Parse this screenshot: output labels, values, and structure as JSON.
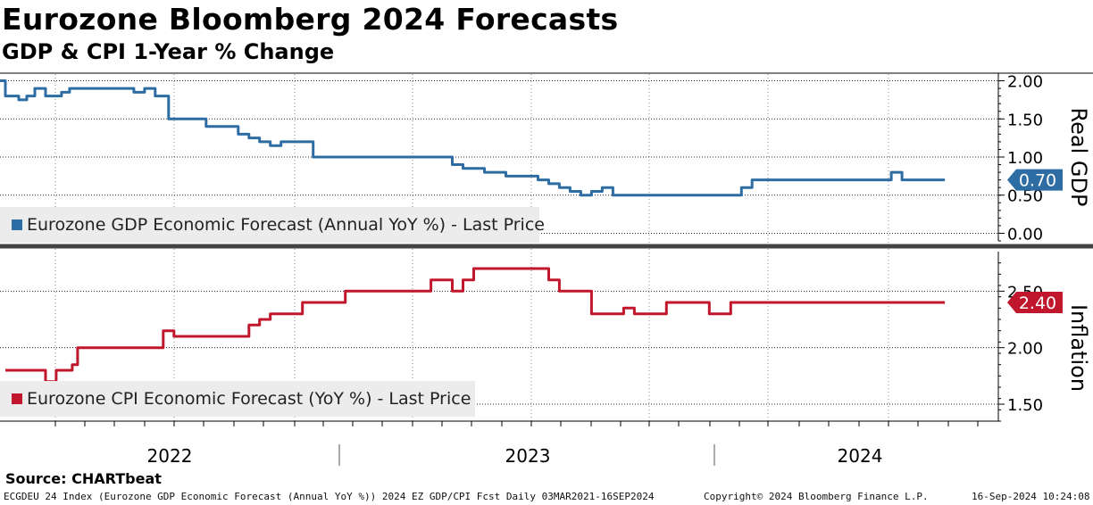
{
  "header": {
    "title": "Eurozone Bloomberg 2024 Forecasts",
    "subtitle": "GDP & CPI 1-Year % Change"
  },
  "source": "Source: CHARTbeat",
  "footer": {
    "left": "ECGDEU 24 Index (Eurozone GDP Economic Forecast (Annual YoY %)) 2024 EZ GDP/CPI Fcst  Daily 03MAR2021-16SEP2024",
    "center": "Copyright© 2024 Bloomberg Finance L.P.",
    "right": "16-Sep-2024 10:24:08"
  },
  "colors": {
    "gdp": "#2e6da4",
    "cpi": "#c0172d",
    "legend_bg": "#ececec",
    "grid": "#000000"
  },
  "chart_data": [
    {
      "type": "line",
      "panel": "top",
      "axis_title": "Real GDP",
      "legend": "Eurozone GDP Economic Forecast (Annual YoY %) - Last Price",
      "ylim": [
        -0.1,
        2.1
      ],
      "yticks": [
        0.0,
        0.5,
        1.0,
        1.5,
        2.0
      ],
      "ytick_labels": [
        "0.00",
        "0.50",
        "1.00",
        "1.50",
        "2.00"
      ],
      "last_value": 0.7,
      "last_label": "0.70",
      "series": [
        {
          "name": "Eurozone GDP Economic Forecast (Annual YoY %) - Last Price",
          "x": [
            2021.17,
            2021.19,
            2021.24,
            2021.27,
            2021.3,
            2021.34,
            2021.37,
            2021.4,
            2021.43,
            2021.46,
            2021.52,
            2021.55,
            2021.6,
            2021.64,
            2021.67,
            2021.71,
            2021.75,
            2021.8,
            2021.85,
            2021.9,
            2021.94,
            2021.98,
            2022.02,
            2022.06,
            2022.1,
            2022.14,
            2022.18,
            2022.22,
            2022.26,
            2022.3,
            2022.34,
            2022.38,
            2022.42,
            2022.46,
            2022.5,
            2022.54,
            2022.58,
            2022.62,
            2022.66,
            2022.7,
            2022.74,
            2022.78,
            2022.82,
            2022.86,
            2022.9,
            2022.94,
            2022.98,
            2023.02,
            2023.06,
            2023.1,
            2023.14,
            2023.18,
            2023.22,
            2023.26,
            2023.3,
            2023.34,
            2023.38,
            2023.42,
            2023.46,
            2023.5,
            2023.54,
            2023.58,
            2023.62,
            2023.66,
            2023.7,
            2023.74,
            2023.78,
            2023.82,
            2023.86,
            2023.9,
            2023.94,
            2023.98,
            2024.02,
            2024.06,
            2024.1,
            2024.14,
            2024.18,
            2024.22,
            2024.26,
            2024.3,
            2024.34,
            2024.38,
            2024.42,
            2024.46,
            2024.5,
            2024.54,
            2024.58,
            2024.62,
            2024.66,
            2024.7
          ],
          "values": [
            2.0,
            1.8,
            1.75,
            1.8,
            1.9,
            1.8,
            1.8,
            1.85,
            1.9,
            1.9,
            1.9,
            1.9,
            1.9,
            1.9,
            1.85,
            1.9,
            1.8,
            1.5,
            1.5,
            1.5,
            1.4,
            1.4,
            1.4,
            1.3,
            1.25,
            1.2,
            1.15,
            1.2,
            1.2,
            1.2,
            1.0,
            1.0,
            1.0,
            1.0,
            1.0,
            1.0,
            1.0,
            1.0,
            1.0,
            1.0,
            1.0,
            1.0,
            1.0,
            0.9,
            0.85,
            0.85,
            0.8,
            0.8,
            0.75,
            0.75,
            0.75,
            0.7,
            0.65,
            0.6,
            0.55,
            0.5,
            0.55,
            0.6,
            0.5,
            0.5,
            0.5,
            0.5,
            0.5,
            0.5,
            0.5,
            0.5,
            0.5,
            0.5,
            0.5,
            0.5,
            0.6,
            0.7,
            0.7,
            0.7,
            0.7,
            0.7,
            0.7,
            0.7,
            0.7,
            0.7,
            0.7,
            0.7,
            0.7,
            0.7,
            0.8,
            0.7,
            0.7,
            0.7,
            0.7,
            0.7
          ]
        }
      ]
    },
    {
      "type": "line",
      "panel": "bottom",
      "axis_title": "Inflation",
      "legend": "Eurozone CPI Economic Forecast (YoY %) - Last Price",
      "ylim": [
        1.35,
        2.85
      ],
      "yticks": [
        1.5,
        2.0,
        2.5
      ],
      "ytick_labels": [
        "1.50",
        "2.00",
        "2.50"
      ],
      "last_value": 2.4,
      "last_label": "2.40",
      "series": [
        {
          "name": "Eurozone CPI Economic Forecast (YoY %) - Last Price",
          "x": [
            2021.19,
            2021.25,
            2021.3,
            2021.34,
            2021.38,
            2021.42,
            2021.44,
            2021.46,
            2021.5,
            2021.54,
            2021.58,
            2021.62,
            2021.66,
            2021.7,
            2021.74,
            2021.78,
            2021.82,
            2021.86,
            2021.9,
            2021.94,
            2021.98,
            2022.02,
            2022.06,
            2022.1,
            2022.14,
            2022.18,
            2022.22,
            2022.26,
            2022.3,
            2022.34,
            2022.38,
            2022.42,
            2022.46,
            2022.5,
            2022.54,
            2022.58,
            2022.62,
            2022.66,
            2022.7,
            2022.74,
            2022.78,
            2022.82,
            2022.86,
            2022.9,
            2022.94,
            2022.98,
            2023.02,
            2023.06,
            2023.1,
            2023.14,
            2023.18,
            2023.22,
            2023.26,
            2023.3,
            2023.34,
            2023.38,
            2023.42,
            2023.46,
            2023.5,
            2023.54,
            2023.58,
            2023.62,
            2023.66,
            2023.7,
            2023.74,
            2023.78,
            2023.82,
            2023.86,
            2023.9,
            2023.94,
            2023.98,
            2024.02,
            2024.06,
            2024.1,
            2024.14,
            2024.18,
            2024.22,
            2024.26,
            2024.3,
            2024.34,
            2024.38,
            2024.42,
            2024.46,
            2024.5,
            2024.54,
            2024.58,
            2024.62,
            2024.66,
            2024.7
          ],
          "values": [
            1.8,
            1.8,
            1.8,
            1.7,
            1.8,
            1.8,
            1.85,
            2.0,
            2.0,
            2.0,
            2.0,
            2.0,
            2.0,
            2.0,
            2.0,
            2.15,
            2.1,
            2.1,
            2.1,
            2.1,
            2.1,
            2.1,
            2.1,
            2.2,
            2.25,
            2.3,
            2.3,
            2.3,
            2.4,
            2.4,
            2.4,
            2.4,
            2.5,
            2.5,
            2.5,
            2.5,
            2.5,
            2.5,
            2.5,
            2.5,
            2.6,
            2.6,
            2.5,
            2.6,
            2.7,
            2.7,
            2.7,
            2.7,
            2.7,
            2.7,
            2.7,
            2.6,
            2.5,
            2.5,
            2.5,
            2.3,
            2.3,
            2.3,
            2.35,
            2.3,
            2.3,
            2.3,
            2.4,
            2.4,
            2.4,
            2.4,
            2.3,
            2.3,
            2.4,
            2.4,
            2.4,
            2.4,
            2.4,
            2.4,
            2.4,
            2.4,
            2.4,
            2.4,
            2.4,
            2.4,
            2.4,
            2.4,
            2.4,
            2.4,
            2.4,
            2.4,
            2.4,
            2.4,
            2.4
          ]
        }
      ]
    }
  ],
  "x_axis": {
    "xlim": [
      2021.17,
      2024.9
    ],
    "year_labels": [
      {
        "label": "2022",
        "center": 2022.5
      },
      {
        "label": "2023",
        "center": 2023.5
      },
      {
        "label": "2024",
        "center": 2024.5
      }
    ],
    "year_boundaries": [
      2023.0,
      2024.0
    ],
    "month_ticks": [
      2021.33,
      2021.42,
      2021.5,
      2021.58,
      2021.67,
      2021.75,
      2021.83,
      2021.92,
      2022.0,
      2022.08,
      2022.17,
      2022.25,
      2022.33,
      2022.42,
      2022.5,
      2022.58,
      2022.67,
      2022.75,
      2022.83,
      2022.92,
      2023.0,
      2023.08,
      2023.17,
      2023.25,
      2023.33,
      2023.42,
      2023.5,
      2023.58,
      2023.67,
      2023.75,
      2023.83,
      2023.92,
      2024.0,
      2024.08,
      2024.17,
      2024.25,
      2024.33,
      2024.42,
      2024.5,
      2024.58,
      2024.67
    ]
  }
}
